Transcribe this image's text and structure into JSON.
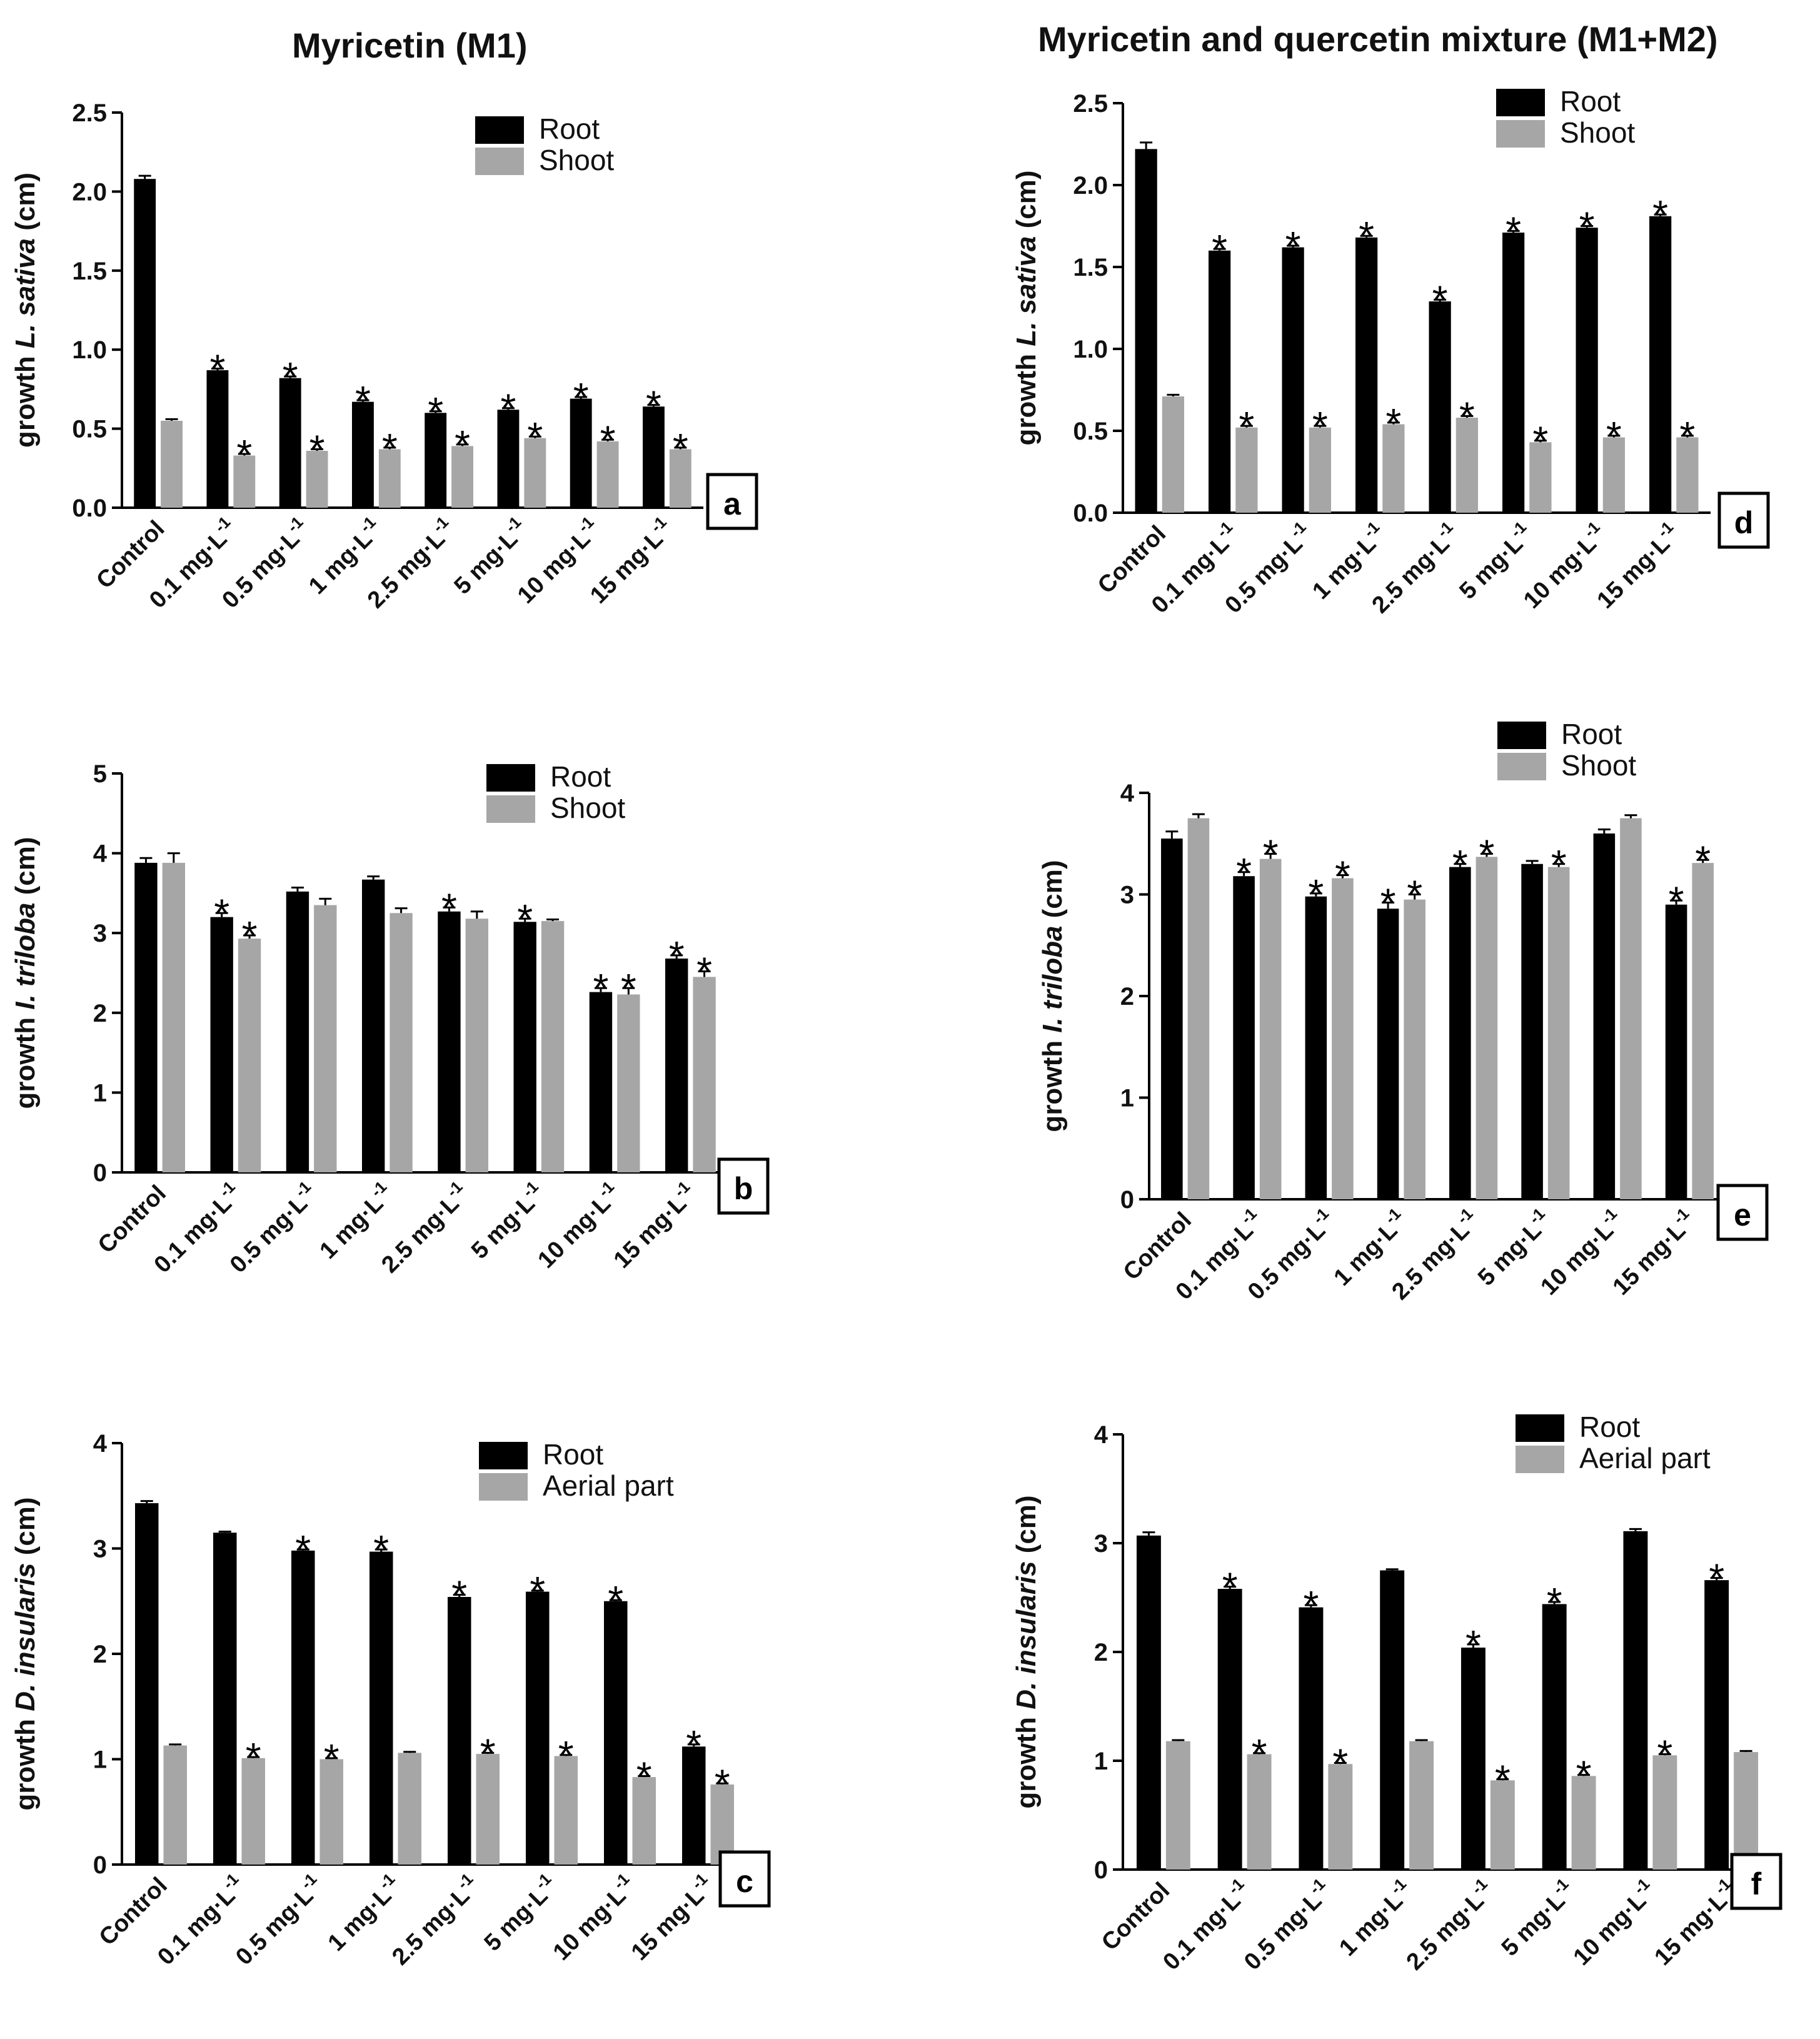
{
  "titles": {
    "left": "Myricetin (M1)",
    "right": "Myricetin and quercetin mixture (M1+M2)"
  },
  "colors": {
    "root": "#000000",
    "shoot": "#a6a6a6",
    "axis": "#000000"
  },
  "chart_data": [
    {
      "type": "bar",
      "panel": "a",
      "ylabel_prefix": "growth ",
      "ylabel_species": "L. sativa",
      "ylabel_suffix": " (cm)",
      "ylim": [
        0,
        2.5
      ],
      "yticks": [
        "0.0",
        "0.5",
        "1.0",
        "1.5",
        "2.0",
        "2.5"
      ],
      "categories": [
        "Control",
        "0.1 mg",
        "0.5 mg",
        "1 mg",
        "2.5 mg",
        "5 mg",
        "10 mg",
        "15 mg"
      ],
      "category_unit": "·L",
      "category_exponent": "-1",
      "series": [
        {
          "name": "Root",
          "values": [
            2.08,
            0.87,
            0.82,
            0.67,
            0.6,
            0.62,
            0.69,
            0.64
          ],
          "errors": [
            0.02,
            0.01,
            0.01,
            0.01,
            0.01,
            0.01,
            0.01,
            0.01
          ],
          "significant": [
            false,
            true,
            true,
            true,
            true,
            true,
            true,
            true
          ]
        },
        {
          "name": "Shoot",
          "values": [
            0.55,
            0.33,
            0.36,
            0.37,
            0.39,
            0.44,
            0.42,
            0.37
          ],
          "errors": [
            0.01,
            0.01,
            0.01,
            0.01,
            0.01,
            0.01,
            0.01,
            0.01
          ],
          "significant": [
            false,
            true,
            true,
            true,
            true,
            true,
            true,
            true
          ]
        }
      ]
    },
    {
      "type": "bar",
      "panel": "b",
      "ylabel_prefix": "growth ",
      "ylabel_species": "I. triloba",
      "ylabel_suffix": " (cm)",
      "ylim": [
        0,
        5
      ],
      "yticks": [
        "0",
        "1",
        "2",
        "3",
        "4",
        "5"
      ],
      "categories": [
        "Control",
        "0.1 mg",
        "0.5 mg",
        "1 mg",
        "2.5 mg",
        "5 mg",
        "10 mg",
        "15 mg"
      ],
      "category_unit": "·L",
      "category_exponent": "-1",
      "series": [
        {
          "name": "Root",
          "values": [
            3.88,
            3.2,
            3.52,
            3.67,
            3.27,
            3.14,
            2.26,
            2.68
          ],
          "errors": [
            0.06,
            0.05,
            0.05,
            0.04,
            0.05,
            0.04,
            0.05,
            0.04
          ],
          "significant": [
            false,
            true,
            false,
            false,
            true,
            true,
            true,
            true
          ]
        },
        {
          "name": "Shoot",
          "values": [
            3.88,
            2.93,
            3.35,
            3.25,
            3.18,
            3.15,
            2.23,
            2.45
          ],
          "errors": [
            0.12,
            0.04,
            0.08,
            0.06,
            0.09,
            0.02,
            0.08,
            0.07
          ],
          "significant": [
            false,
            true,
            false,
            false,
            false,
            false,
            true,
            true
          ]
        }
      ]
    },
    {
      "type": "bar",
      "panel": "c",
      "ylabel_prefix": "growth ",
      "ylabel_species": "D. insularis",
      "ylabel_suffix": " (cm)",
      "ylim": [
        0,
        4
      ],
      "yticks": [
        "0",
        "1",
        "2",
        "3",
        "4"
      ],
      "categories": [
        "Control",
        "0.1 mg",
        "0.5 mg",
        "1 mg",
        "2.5 mg",
        "5 mg",
        "10 mg",
        "15 mg"
      ],
      "category_unit": "·L",
      "category_exponent": "-1",
      "series": [
        {
          "name": "Root",
          "values": [
            3.43,
            3.15,
            2.98,
            2.97,
            2.54,
            2.59,
            2.5,
            1.12
          ],
          "errors": [
            0.02,
            0.01,
            0.01,
            0.02,
            0.02,
            0.01,
            0.01,
            0.02
          ],
          "significant": [
            false,
            false,
            true,
            true,
            true,
            true,
            true,
            true
          ]
        },
        {
          "name": "Aerial part",
          "values": [
            1.13,
            1.01,
            1.0,
            1.06,
            1.05,
            1.03,
            0.83,
            0.76
          ],
          "errors": [
            0.01,
            0.01,
            0.01,
            0.01,
            0.01,
            0.01,
            0.01,
            0.01
          ],
          "significant": [
            false,
            true,
            true,
            false,
            true,
            true,
            true,
            true
          ]
        }
      ]
    },
    {
      "type": "bar",
      "panel": "d",
      "ylabel_prefix": "growth ",
      "ylabel_species": "L. sativa",
      "ylabel_suffix": " (cm)",
      "ylim": [
        0,
        2.5
      ],
      "yticks": [
        "0.0",
        "0.5",
        "1.0",
        "1.5",
        "2.0",
        "2.5"
      ],
      "categories": [
        "Control",
        "0.1 mg",
        "0.5 mg",
        "1 mg",
        "2.5 mg",
        "5 mg",
        "10 mg",
        "15 mg"
      ],
      "category_unit": "·L",
      "category_exponent": "-1",
      "series": [
        {
          "name": "Root",
          "values": [
            2.22,
            1.6,
            1.62,
            1.68,
            1.29,
            1.71,
            1.74,
            1.81
          ],
          "errors": [
            0.04,
            0.01,
            0.01,
            0.01,
            0.01,
            0.01,
            0.01,
            0.01
          ],
          "significant": [
            false,
            true,
            true,
            true,
            true,
            true,
            true,
            true
          ]
        },
        {
          "name": "Shoot",
          "values": [
            0.71,
            0.52,
            0.52,
            0.54,
            0.58,
            0.43,
            0.46,
            0.46
          ],
          "errors": [
            0.01,
            0.01,
            0.01,
            0.01,
            0.01,
            0.01,
            0.01,
            0.01
          ],
          "significant": [
            false,
            true,
            true,
            true,
            true,
            true,
            true,
            true
          ]
        }
      ]
    },
    {
      "type": "bar",
      "panel": "e",
      "ylabel_prefix": "growth ",
      "ylabel_species": "I. triloba",
      "ylabel_suffix": " (cm)",
      "ylim": [
        0,
        4
      ],
      "yticks": [
        "0",
        "1",
        "2",
        "3",
        "4"
      ],
      "categories": [
        "Control",
        "0.1 mg",
        "0.5 mg",
        "1 mg",
        "2.5 mg",
        "5 mg",
        "10 mg",
        "15 mg"
      ],
      "category_unit": "·L",
      "category_exponent": "-1",
      "series": [
        {
          "name": "Root",
          "values": [
            3.55,
            3.18,
            2.98,
            2.86,
            3.27,
            3.3,
            3.6,
            2.9
          ],
          "errors": [
            0.07,
            0.04,
            0.03,
            0.06,
            0.03,
            0.03,
            0.04,
            0.04
          ],
          "significant": [
            false,
            true,
            true,
            true,
            true,
            false,
            false,
            true
          ]
        },
        {
          "name": "Shoot",
          "values": [
            3.75,
            3.35,
            3.16,
            2.95,
            3.37,
            3.27,
            3.75,
            3.31
          ],
          "errors": [
            0.04,
            0.05,
            0.03,
            0.05,
            0.03,
            0.03,
            0.03,
            0.03
          ],
          "significant": [
            false,
            true,
            true,
            true,
            true,
            true,
            false,
            true
          ]
        }
      ]
    },
    {
      "type": "bar",
      "panel": "f",
      "ylabel_prefix": "growth ",
      "ylabel_species": "D. insularis",
      "ylabel_suffix": " (cm)",
      "ylim": [
        0,
        4
      ],
      "yticks": [
        "0",
        "1",
        "2",
        "3",
        "4"
      ],
      "categories": [
        "Control",
        "0.1 mg",
        "0.5 mg",
        "1 mg",
        "2.5 mg",
        "5 mg",
        "10 mg",
        "15 mg"
      ],
      "category_unit": "·L",
      "category_exponent": "-1",
      "series": [
        {
          "name": "Root",
          "values": [
            3.07,
            2.58,
            2.41,
            2.75,
            2.04,
            2.44,
            3.11,
            2.66
          ],
          "errors": [
            0.03,
            0.02,
            0.02,
            0.01,
            0.03,
            0.02,
            0.02,
            0.02
          ],
          "significant": [
            false,
            true,
            true,
            false,
            true,
            true,
            false,
            true
          ]
        },
        {
          "name": "Aerial part",
          "values": [
            1.18,
            1.06,
            0.97,
            1.18,
            0.82,
            0.86,
            1.05,
            1.08
          ],
          "errors": [
            0.01,
            0.01,
            0.01,
            0.01,
            0.01,
            0.01,
            0.01,
            0.01
          ],
          "significant": [
            false,
            true,
            true,
            false,
            true,
            true,
            true,
            false
          ]
        }
      ]
    }
  ]
}
